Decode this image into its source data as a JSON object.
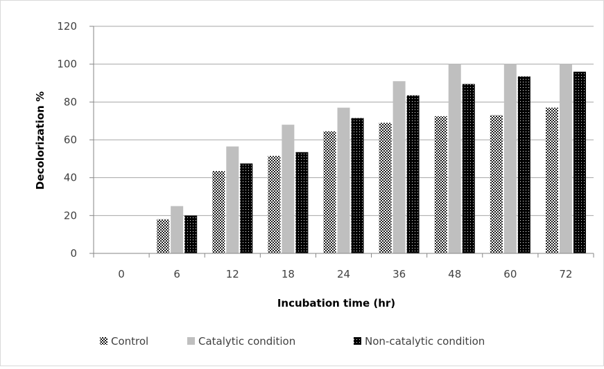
{
  "chart_data": {
    "type": "bar",
    "title": "",
    "xlabel": "Incubation time (hr)",
    "ylabel": "Decolorization %",
    "ylim": [
      0,
      120
    ],
    "yticks": [
      0,
      20,
      40,
      60,
      80,
      100,
      120
    ],
    "grid": true,
    "legend_position": "bottom",
    "categories": [
      "0",
      "6",
      "12",
      "18",
      "24",
      "36",
      "48",
      "60",
      "72"
    ],
    "series": [
      {
        "name": "Control",
        "values": [
          0,
          18,
          43.5,
          51.5,
          64.5,
          69,
          72.5,
          73,
          77
        ],
        "color": "#1a1a1a",
        "pattern": "checker"
      },
      {
        "name": "Catalytic condition",
        "values": [
          0,
          25,
          56.5,
          68,
          77,
          91,
          100,
          100,
          100
        ],
        "color": "#bfbfbf",
        "pattern": "solid"
      },
      {
        "name": "Non-catalytic condition",
        "values": [
          0,
          20,
          47.5,
          53.5,
          71.5,
          83.5,
          89.5,
          93.5,
          96
        ],
        "color": "#000000",
        "pattern": "dots"
      }
    ]
  }
}
